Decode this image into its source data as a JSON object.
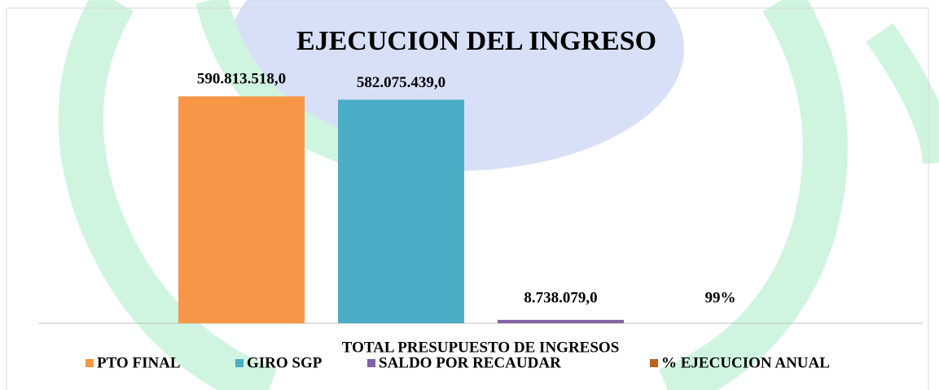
{
  "chart_data": {
    "type": "bar",
    "title": "EJECUCION DEL INGRESO",
    "categories": [
      "TOTAL PRESUPUESTO DE INGRESOS"
    ],
    "series": [
      {
        "name": "PTO FINAL",
        "color": "#f79646",
        "values": [
          590813518
        ],
        "value_labels": [
          "590.813.518,0"
        ]
      },
      {
        "name": "GIRO SGP",
        "color": "#4bacc6",
        "values": [
          582075439
        ],
        "value_labels": [
          "582.075.439,0"
        ]
      },
      {
        "name": "SALDO POR RECAUDAR",
        "color": "#8064a2",
        "values": [
          8738079
        ],
        "value_labels": [
          "8.738.079,0"
        ]
      },
      {
        "name": "% EJECUCION ANUAL",
        "color": "#c0601a",
        "values": [
          0.99
        ],
        "value_labels": [
          "99%"
        ]
      }
    ],
    "ylim": [
      0,
      600000000
    ],
    "legend": "bottom"
  }
}
